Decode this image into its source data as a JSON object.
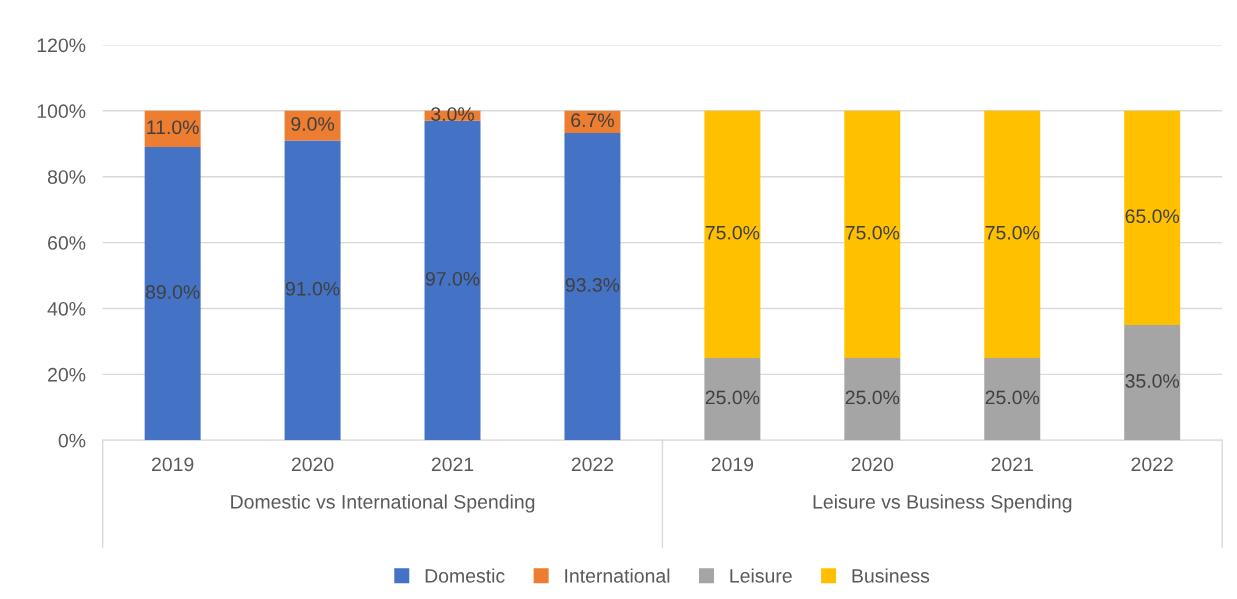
{
  "chart_data": {
    "type": "bar",
    "stacked": true,
    "categories": [
      "2019",
      "2020",
      "2021",
      "2022",
      "2019",
      "2020",
      "2021",
      "2022"
    ],
    "series": [
      {
        "name": "Domestic",
        "color": "#4472c4",
        "values": [
          89.0,
          91.0,
          97.0,
          93.3,
          null,
          null,
          null,
          null
        ],
        "value_labels": [
          "89.0%",
          "91.0%",
          "97.0%",
          "93.3%",
          null,
          null,
          null,
          null
        ]
      },
      {
        "name": "International",
        "color": "#ed7d31",
        "values": [
          11.0,
          9.0,
          3.0,
          6.7,
          null,
          null,
          null,
          null
        ],
        "value_labels": [
          "11.0%",
          "9.0%",
          "3.0%",
          "6.7%",
          null,
          null,
          null,
          null
        ]
      },
      {
        "name": "Leisure",
        "color": "#a5a5a5",
        "values": [
          null,
          null,
          null,
          null,
          25.0,
          25.0,
          25.0,
          35.0
        ],
        "value_labels": [
          null,
          null,
          null,
          null,
          "25.0%",
          "25.0%",
          "25.0%",
          "35.0%"
        ]
      },
      {
        "name": "Business",
        "color": "#ffc000",
        "values": [
          null,
          null,
          null,
          null,
          75.0,
          75.0,
          75.0,
          65.0
        ],
        "value_labels": [
          null,
          null,
          null,
          null,
          "75.0%",
          "75.0%",
          "75.0%",
          "65.0%"
        ]
      }
    ],
    "annotations": [
      "Domestic vs International Spending",
      "Leisure vs Business Spending"
    ],
    "ylim": [
      0,
      120
    ],
    "yticks": [
      {
        "value": 0,
        "label": "0%"
      },
      {
        "value": 20,
        "label": "20%"
      },
      {
        "value": 40,
        "label": "40%"
      },
      {
        "value": 60,
        "label": "60%"
      },
      {
        "value": 80,
        "label": "80%"
      },
      {
        "value": 100,
        "label": "100%"
      },
      {
        "value": 120,
        "label": "120%"
      }
    ],
    "grid": "y",
    "legend": "bottom"
  }
}
